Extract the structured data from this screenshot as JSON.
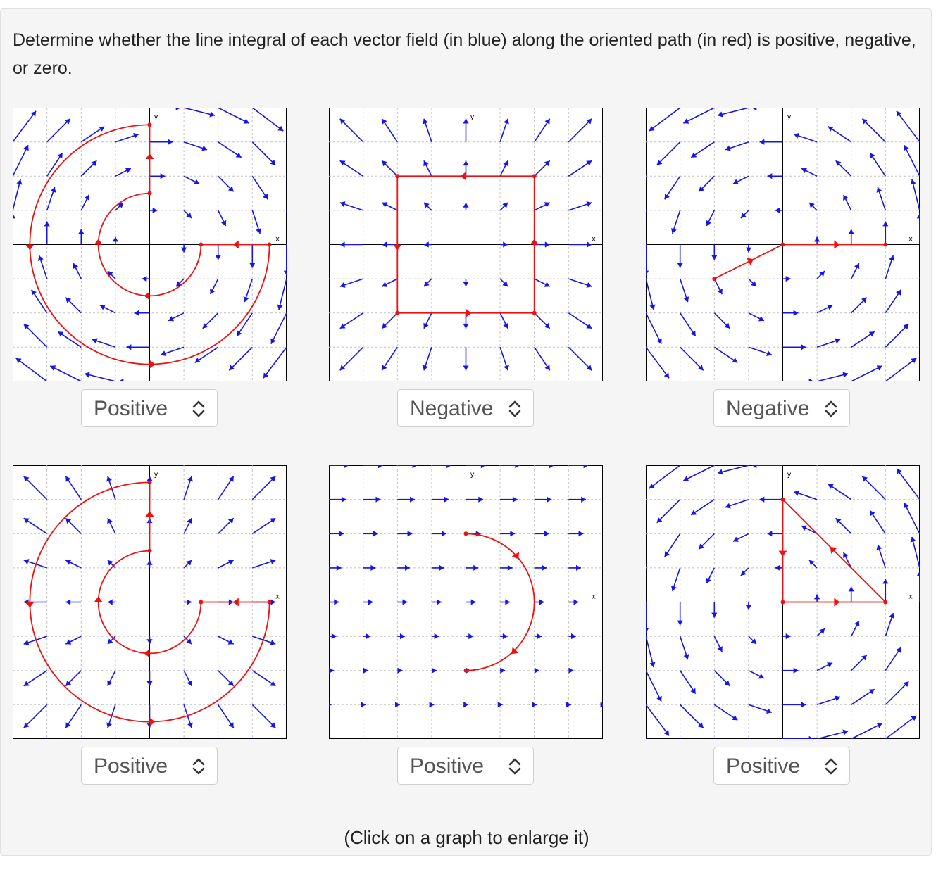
{
  "question": "Determine whether the line integral of each vector field (in blue) along the oriented path (in red) is positive, negative, or zero.",
  "axis_labels": {
    "x": "x",
    "y": "y"
  },
  "colors": {
    "field": "#1515e8",
    "path": "#ee1111",
    "grid": "#c4c4c4",
    "axis": "#000000"
  },
  "graphs": [
    {
      "field": "rotation-clockwise",
      "path": "spiral-clockwise",
      "answer": "Positive"
    },
    {
      "field": "radial-outward",
      "path": "square-counterclockwise",
      "answer": "Negative"
    },
    {
      "field": "rotation-counterclockwise",
      "path": "polyline-to-positive-x",
      "answer": "Negative"
    },
    {
      "field": "radial-outward",
      "path": "spiral-clockwise",
      "answer": "Positive"
    },
    {
      "field": "uniform-rightward-stronger-upward",
      "path": "semicircle-clockwise",
      "answer": "Positive"
    },
    {
      "field": "rotation-counterclockwise",
      "path": "triangle-counterclockwise",
      "answer": "Positive"
    }
  ],
  "select_icon": "chevron-up-down-icon",
  "footer": "(Click on a graph to enlarge it)"
}
